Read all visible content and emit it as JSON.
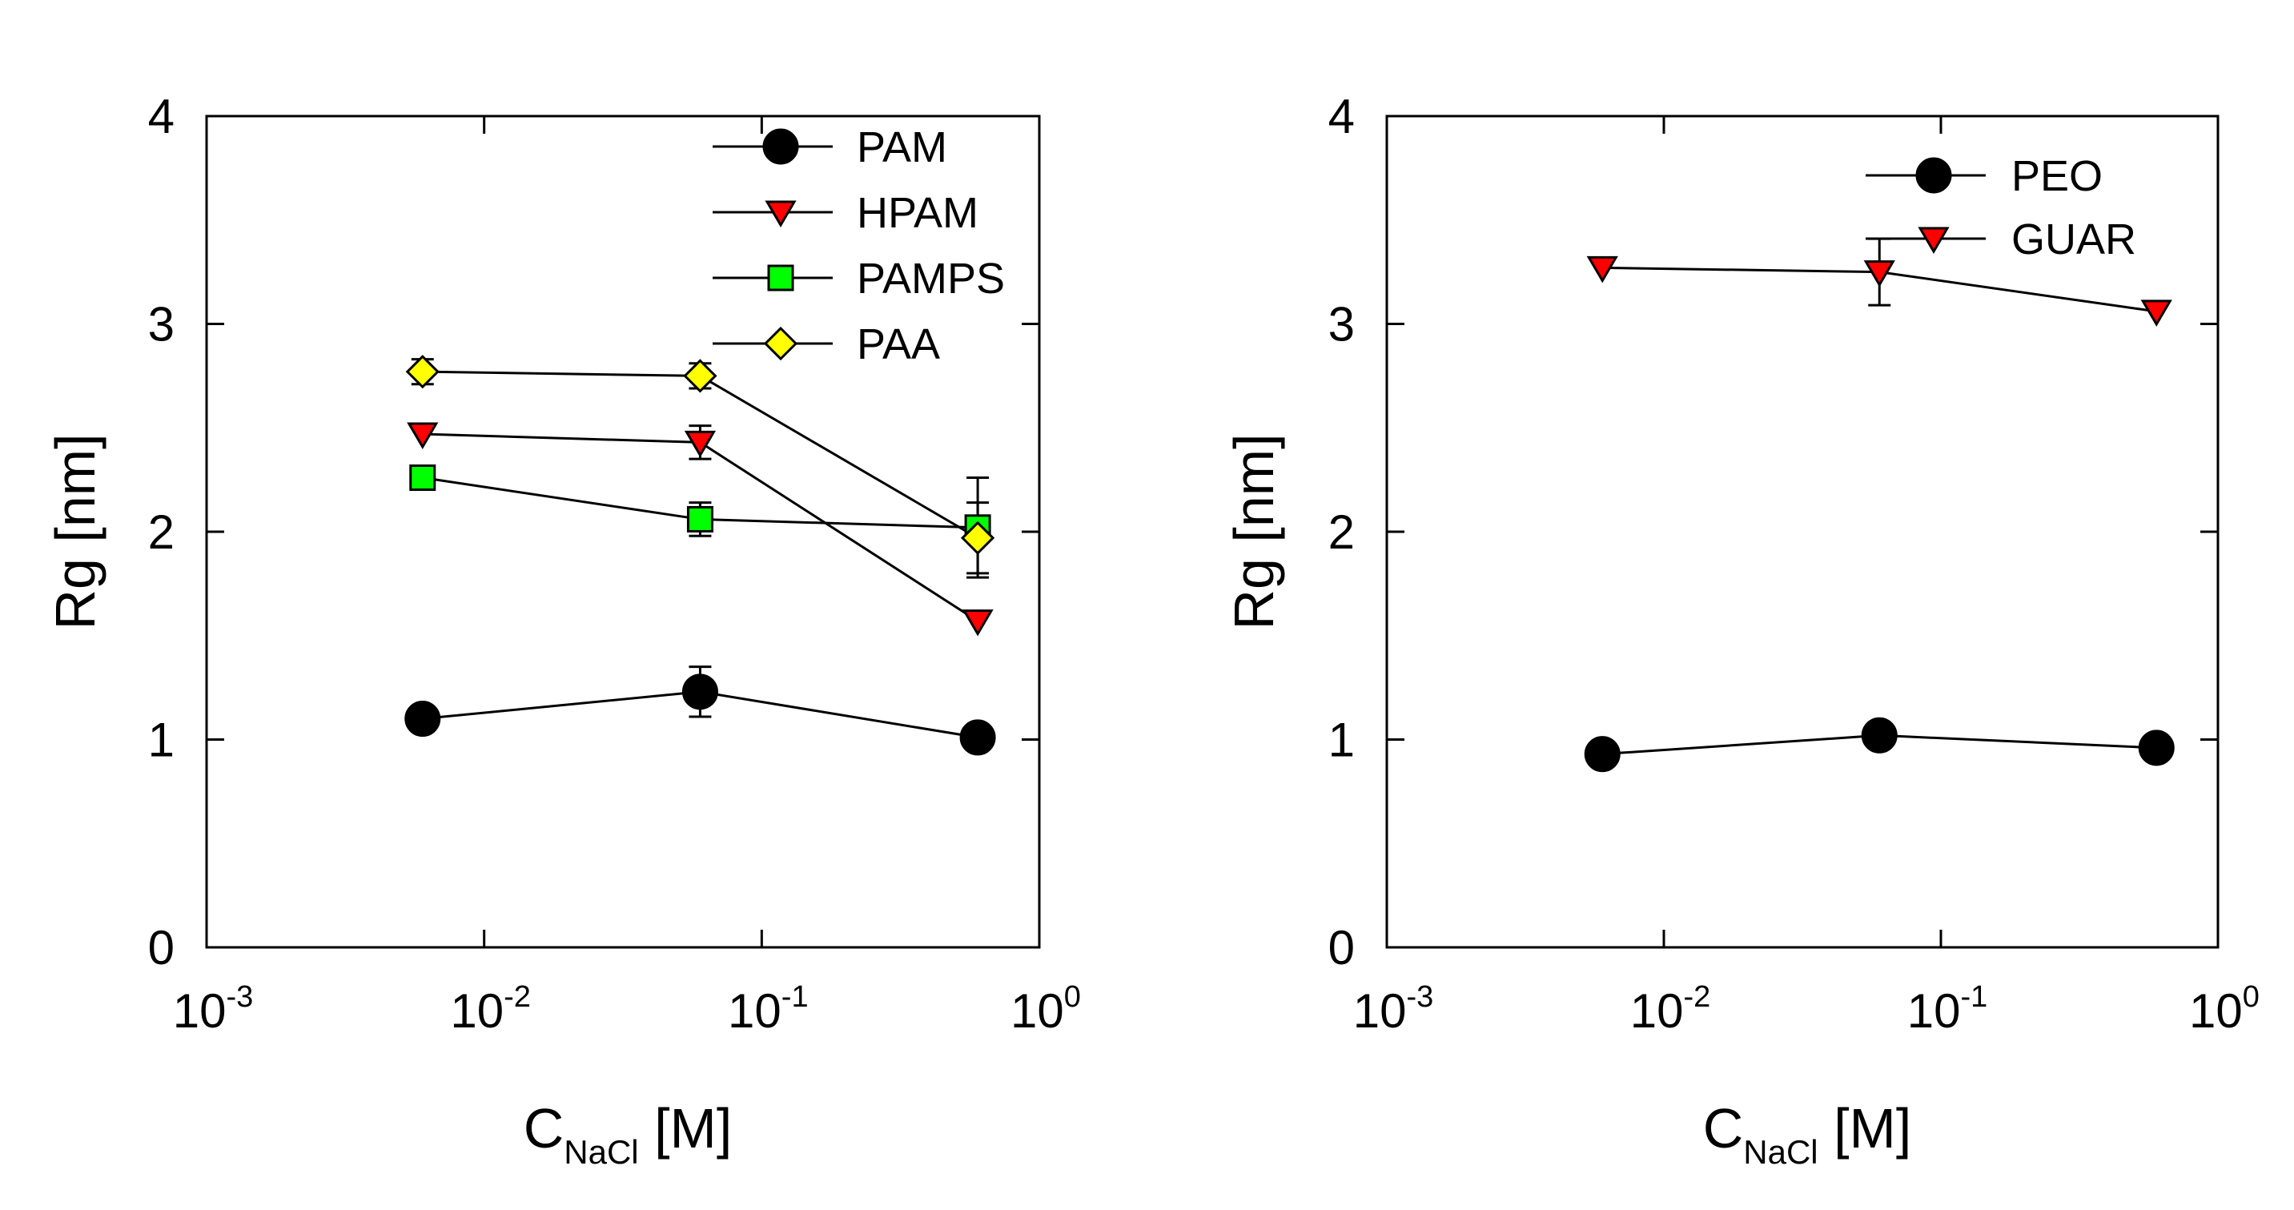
{
  "chart_data": [
    {
      "type": "scatter",
      "xscale": "log",
      "xlim": [
        0.001,
        1
      ],
      "ylim": [
        0,
        4
      ],
      "xticks": [
        {
          "base": "10",
          "exp": "-3"
        },
        {
          "base": "10",
          "exp": "-2"
        },
        {
          "base": "10",
          "exp": "-1"
        },
        {
          "base": "10",
          "exp": "0"
        }
      ],
      "yticks": [
        "0",
        "1",
        "2",
        "3",
        "4"
      ],
      "xlabel": {
        "main": "C",
        "sub": "NaCl",
        "unit": " [M]"
      },
      "ylabel": "Rg [nm]",
      "legend_position": "top-right",
      "series": [
        {
          "name": "PAM",
          "marker": "circle",
          "color": "#000000",
          "x": [
            0.006,
            0.06,
            0.6
          ],
          "y": [
            1.1,
            1.23,
            1.01
          ],
          "err": [
            0,
            0.12,
            0
          ]
        },
        {
          "name": "HPAM",
          "marker": "triangle-down",
          "color": "#ff0000",
          "x": [
            0.006,
            0.06,
            0.6
          ],
          "y": [
            2.47,
            2.43,
            1.57
          ],
          "err": [
            0,
            0.08,
            0
          ]
        },
        {
          "name": "PAMPS",
          "marker": "square",
          "color": "#00ff00",
          "x": [
            0.006,
            0.06,
            0.6
          ],
          "y": [
            2.26,
            2.06,
            2.02
          ],
          "err": [
            0,
            0.08,
            0.24
          ]
        },
        {
          "name": "PAA",
          "marker": "diamond",
          "color": "#ffff00",
          "x": [
            0.006,
            0.06,
            0.6
          ],
          "y": [
            2.77,
            2.75,
            1.97
          ],
          "err": [
            0.06,
            0.06,
            0.17
          ]
        }
      ]
    },
    {
      "type": "scatter",
      "xscale": "log",
      "xlim": [
        0.001,
        1
      ],
      "ylim": [
        0,
        4
      ],
      "xticks": [
        {
          "base": "10",
          "exp": "-3"
        },
        {
          "base": "10",
          "exp": "-2"
        },
        {
          "base": "10",
          "exp": "-1"
        },
        {
          "base": "10",
          "exp": "0"
        }
      ],
      "yticks": [
        "0",
        "1",
        "2",
        "3",
        "4"
      ],
      "xlabel": {
        "main": "C",
        "sub": "NaCl",
        "unit": " [M]"
      },
      "ylabel": "Rg [nm]",
      "legend_position": "top-right",
      "series": [
        {
          "name": "PEO",
          "marker": "circle",
          "color": "#000000",
          "x": [
            0.006,
            0.06,
            0.6
          ],
          "y": [
            0.93,
            1.02,
            0.96
          ],
          "err": [
            0,
            0,
            0
          ]
        },
        {
          "name": "GUAR",
          "marker": "triangle-down",
          "color": "#ff0000",
          "x": [
            0.006,
            0.06,
            0.6
          ],
          "y": [
            3.27,
            3.25,
            3.06
          ],
          "err": [
            0,
            0.16,
            0
          ]
        }
      ]
    }
  ]
}
